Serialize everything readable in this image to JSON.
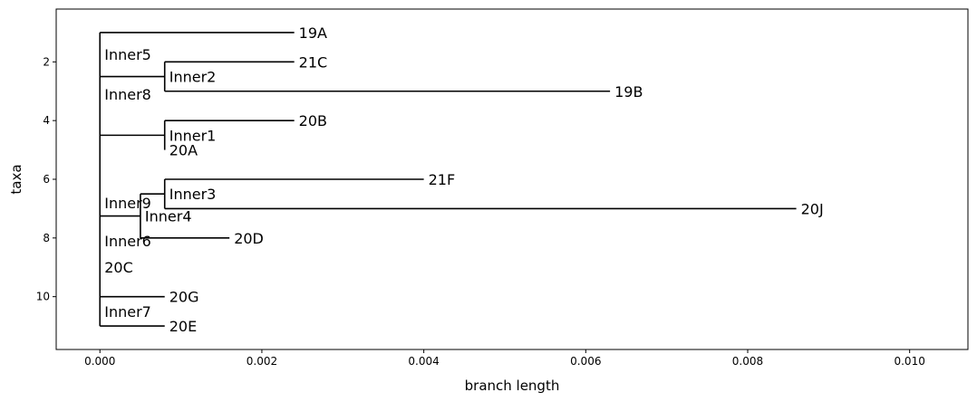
{
  "chart_data": {
    "type": "tree",
    "xlabel": "branch length",
    "ylabel": "taxa",
    "xlim": [
      -0.00054,
      0.01072
    ],
    "ylim": [
      11.8,
      0.2
    ],
    "x_ticks": [
      "0.000",
      "0.002",
      "0.004",
      "0.006",
      "0.008",
      "0.010"
    ],
    "x_tick_values": [
      0,
      0.002,
      0.004,
      0.006,
      0.008,
      0.01
    ],
    "y_ticks": [
      "2",
      "4",
      "6",
      "8",
      "10"
    ],
    "y_tick_values": [
      2,
      4,
      6,
      8,
      10
    ],
    "grid": false,
    "line_color": "#000000",
    "vertical_links": [
      {
        "x": 0.0,
        "y1": 1,
        "y2": 11
      },
      {
        "x": 0.0008,
        "y1": 2,
        "y2": 3
      },
      {
        "x": 0.0008,
        "y1": 4,
        "y2": 5
      },
      {
        "x": 0.0005,
        "y1": 6.5,
        "y2": 8
      },
      {
        "x": 0.0008,
        "y1": 6,
        "y2": 7
      }
    ],
    "branches": [
      {
        "y": 1,
        "x1": 0.0,
        "x2": 0.0024
      },
      {
        "y": 2.5,
        "x1": 0.0,
        "x2": 0.0008
      },
      {
        "y": 2,
        "x1": 0.0008,
        "x2": 0.0024
      },
      {
        "y": 3,
        "x1": 0.0008,
        "x2": 0.0063
      },
      {
        "y": 4.5,
        "x1": 0.0,
        "x2": 0.0008
      },
      {
        "y": 4,
        "x1": 0.0008,
        "x2": 0.0024
      },
      {
        "y": 7.25,
        "x1": 0.0,
        "x2": 0.0005
      },
      {
        "y": 6.5,
        "x1": 0.0005,
        "x2": 0.0008
      },
      {
        "y": 6,
        "x1": 0.0008,
        "x2": 0.004
      },
      {
        "y": 7,
        "x1": 0.0008,
        "x2": 0.0086
      },
      {
        "y": 8,
        "x1": 0.0005,
        "x2": 0.0016
      },
      {
        "y": 10,
        "x1": 0.0,
        "x2": 0.0008
      },
      {
        "y": 11,
        "x1": 0.0,
        "x2": 0.0008
      }
    ],
    "node_labels": [
      {
        "label": "19A",
        "x": 0.0024,
        "y": 1
      },
      {
        "label": "Inner5",
        "x": 0.0,
        "y": 1.75
      },
      {
        "label": "Inner2",
        "x": 0.0008,
        "y": 2.5
      },
      {
        "label": "21C",
        "x": 0.0024,
        "y": 2
      },
      {
        "label": "19B",
        "x": 0.0063,
        "y": 3
      },
      {
        "label": "Inner8",
        "x": 0.0,
        "y": 3.1
      },
      {
        "label": "20B",
        "x": 0.0024,
        "y": 4
      },
      {
        "label": "Inner1",
        "x": 0.0008,
        "y": 4.5
      },
      {
        "label": "20A",
        "x": 0.0008,
        "y": 5
      },
      {
        "label": "21F",
        "x": 0.004,
        "y": 6
      },
      {
        "label": "Inner3",
        "x": 0.0008,
        "y": 6.5
      },
      {
        "label": "20J",
        "x": 0.0086,
        "y": 7
      },
      {
        "label": "Inner9",
        "x": 0.0,
        "y": 6.8
      },
      {
        "label": "Inner4",
        "x": 0.0005,
        "y": 7.25
      },
      {
        "label": "20D",
        "x": 0.0016,
        "y": 8
      },
      {
        "label": "Inner6",
        "x": 0.0,
        "y": 8.1
      },
      {
        "label": "20C",
        "x": 0.0,
        "y": 9
      },
      {
        "label": "20G",
        "x": 0.0008,
        "y": 10
      },
      {
        "label": "Inner7",
        "x": 0.0,
        "y": 10.5
      },
      {
        "label": "20E",
        "x": 0.0008,
        "y": 11
      }
    ]
  }
}
